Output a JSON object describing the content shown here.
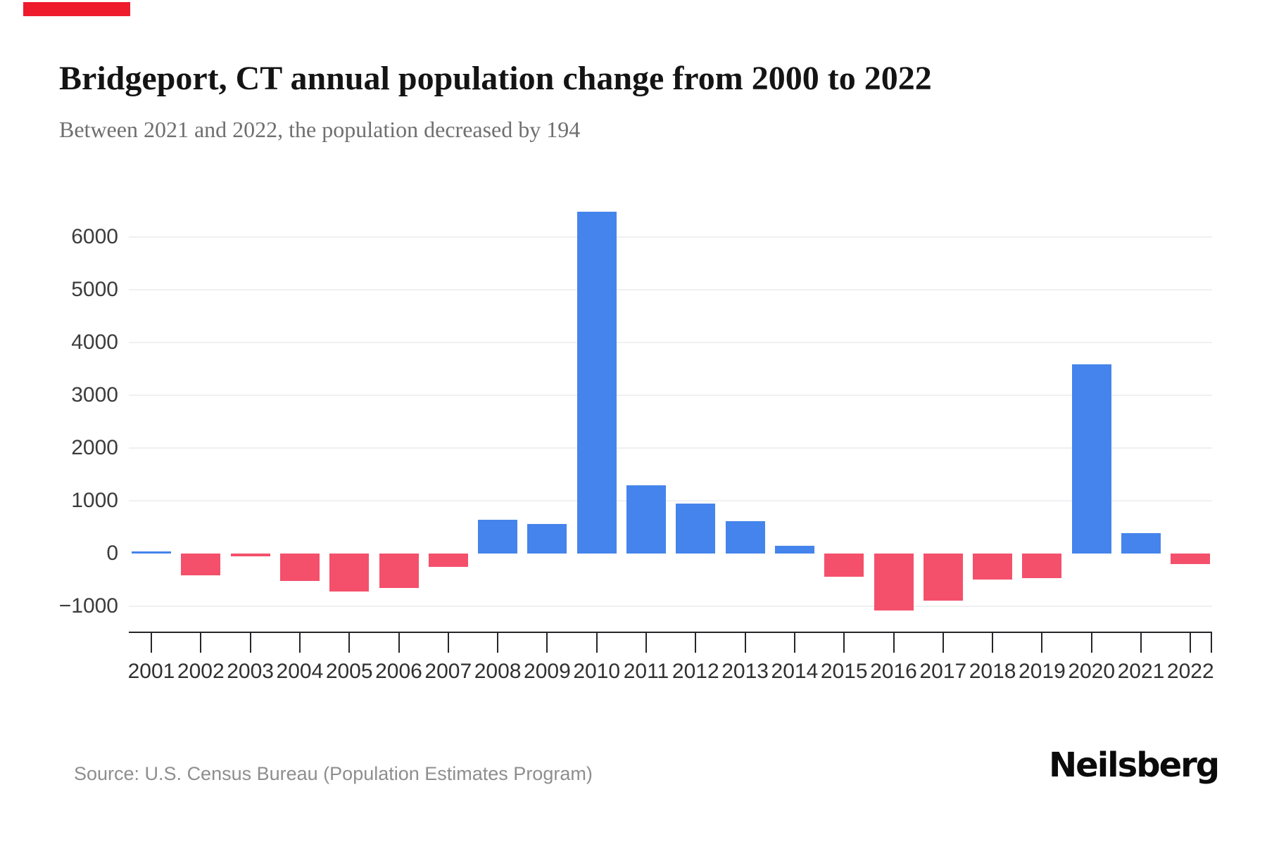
{
  "page": {
    "background": "#ffffff"
  },
  "corner_marker": {
    "color": "#ee1b2d"
  },
  "header": {
    "title": "Bridgeport, CT annual population change from 2000 to 2022",
    "subtitle": "Between 2021 and 2022, the population decreased by 194"
  },
  "chart_data": {
    "type": "bar",
    "title": "Bridgeport, CT annual population change from 2000 to 2022",
    "subtitle": "Between 2021 and 2022, the population decreased by 194",
    "categories": [
      "2001",
      "2002",
      "2003",
      "2004",
      "2005",
      "2006",
      "2007",
      "2008",
      "2009",
      "2010",
      "2011",
      "2012",
      "2013",
      "2014",
      "2015",
      "2016",
      "2017",
      "2018",
      "2019",
      "2020",
      "2021",
      "2022"
    ],
    "values": [
      35,
      -410,
      -55,
      -515,
      -720,
      -650,
      -250,
      640,
      560,
      6480,
      1290,
      945,
      615,
      145,
      -440,
      -1080,
      -890,
      -490,
      -465,
      3590,
      385,
      -194
    ],
    "xlabel": "",
    "ylabel": "",
    "ylim": [
      -1500,
      6700
    ],
    "yticks": [
      6000,
      5000,
      4000,
      3000,
      2000,
      1000,
      0,
      -1000
    ],
    "ytick_labels": [
      "6000",
      "5000",
      "4000",
      "3000",
      "2000",
      "1000",
      "0",
      "−1000"
    ],
    "positive_color": "#4584ec",
    "negative_color": "#f4506b",
    "gridline_color": "#eff0f2",
    "grid": "horizontal lines at labeled ticks, none at 0",
    "legend": "none"
  },
  "footer": {
    "source": "Source: U.S. Census Bureau (Population Estimates Program)",
    "brand": "Neilsberg"
  }
}
